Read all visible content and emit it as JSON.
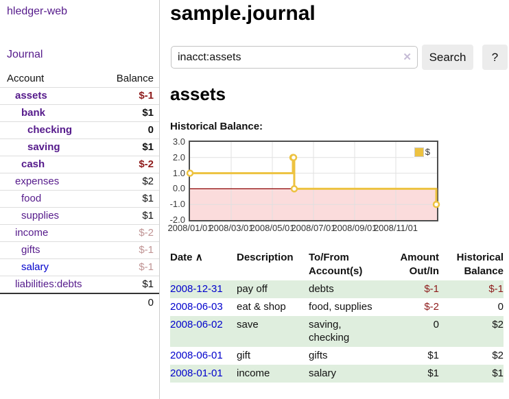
{
  "app_title": "hledger-web",
  "sidebar": {
    "journal_link": "Journal",
    "accounts": {
      "header_account": "Account",
      "header_balance": "Balance",
      "rows": [
        {
          "name": "assets",
          "balance": "$-1",
          "level": 1,
          "bold": true,
          "balance_style": "neg-strong"
        },
        {
          "name": "bank",
          "balance": "$1",
          "level": 2,
          "bold": true,
          "balance_style": "pos"
        },
        {
          "name": "checking",
          "balance": "0",
          "level": 3,
          "bold": true,
          "balance_style": "pos"
        },
        {
          "name": "saving",
          "balance": "$1",
          "level": 3,
          "bold": true,
          "balance_style": "pos"
        },
        {
          "name": "cash",
          "balance": "$-2",
          "level": 2,
          "bold": true,
          "balance_style": "neg-strong"
        },
        {
          "name": "expenses",
          "balance": "$2",
          "level": 1,
          "bold": false,
          "balance_style": "pos"
        },
        {
          "name": "food",
          "balance": "$1",
          "level": 2,
          "bold": false,
          "balance_style": "pos"
        },
        {
          "name": "supplies",
          "balance": "$1",
          "level": 2,
          "bold": false,
          "balance_style": "pos"
        },
        {
          "name": "income",
          "balance": "$-2",
          "level": 1,
          "bold": false,
          "balance_style": "neg-soft"
        },
        {
          "name": "gifts",
          "balance": "$-1",
          "level": 2,
          "bold": false,
          "balance_style": "neg-soft"
        },
        {
          "name": "salary",
          "balance": "$-1",
          "level": 2,
          "bold": false,
          "balance_style": "neg-soft",
          "link_color": "blue"
        },
        {
          "name": "liabilities:debts",
          "balance": "$1",
          "level": 1,
          "bold": false,
          "balance_style": "pos"
        }
      ],
      "total": "0"
    }
  },
  "main": {
    "page_title": "sample.journal",
    "search": {
      "value": "inacct:assets",
      "clear_icon": "✕",
      "search_button": "Search",
      "help_button": "?"
    },
    "account_heading": "assets",
    "chart_title": "Historical Balance:"
  },
  "chart_data": {
    "type": "line",
    "step": true,
    "title": "Historical Balance",
    "series": [
      {
        "name": "$",
        "color": "#edc240",
        "points": [
          {
            "date": "2008-01-01",
            "value": 1
          },
          {
            "date": "2008-06-01",
            "value": 2
          },
          {
            "date": "2008-06-02",
            "value": 2
          },
          {
            "date": "2008-06-03",
            "value": 0
          },
          {
            "date": "2008-12-31",
            "value": -1
          }
        ]
      }
    ],
    "ylim": [
      -2,
      3
    ],
    "yticks": [
      "3.0",
      "2.0",
      "1.0",
      "0.0",
      "-1.0",
      "-2.0"
    ],
    "xticks": [
      "2008/01/01",
      "2008/03/01",
      "2008/05/01",
      "2008/07/01",
      "2008/09/01",
      "2008/11/01"
    ],
    "x_tick_interval_months": 2,
    "x_range_months": 12,
    "grid": true,
    "legend": {
      "position": "top-right",
      "label": "$"
    },
    "negative_region_color": "#fbdcdc",
    "zero_line_color": "#8b0000",
    "grid_color": "#e0e0e0",
    "border_color": "#4d4d4d"
  },
  "register": {
    "headers": {
      "date": "Date",
      "sort_icon": "∧",
      "description": "Description",
      "accounts": "To/From Account(s)",
      "amount": "Amount Out/In",
      "balance": "Historical Balance"
    },
    "rows": [
      {
        "date": "2008-12-31",
        "description": "pay off",
        "accounts": "debts",
        "amount": "$-1",
        "balance": "$-1",
        "amount_negative": true,
        "balance_negative": true
      },
      {
        "date": "2008-06-03",
        "description": "eat & shop",
        "accounts": "food, supplies",
        "amount": "$-2",
        "balance": "0",
        "amount_negative": true,
        "balance_negative": false
      },
      {
        "date": "2008-06-02",
        "description": "save",
        "accounts": "saving, checking",
        "amount": "0",
        "balance": "$2",
        "amount_negative": false,
        "balance_negative": false
      },
      {
        "date": "2008-06-01",
        "description": "gift",
        "accounts": "gifts",
        "amount": "$1",
        "balance": "$2",
        "amount_negative": false,
        "balance_negative": false
      },
      {
        "date": "2008-01-01",
        "description": "income",
        "accounts": "salary",
        "amount": "$1",
        "balance": "$1",
        "amount_negative": false,
        "balance_negative": false
      }
    ]
  },
  "colors": {
    "link_purple": "#551a8b",
    "link_blue": "#0000cc",
    "negative_strong": "#8e1b1b",
    "negative_soft": "#c09494",
    "row_green": "#dfeede",
    "series_yellow": "#edc240"
  }
}
